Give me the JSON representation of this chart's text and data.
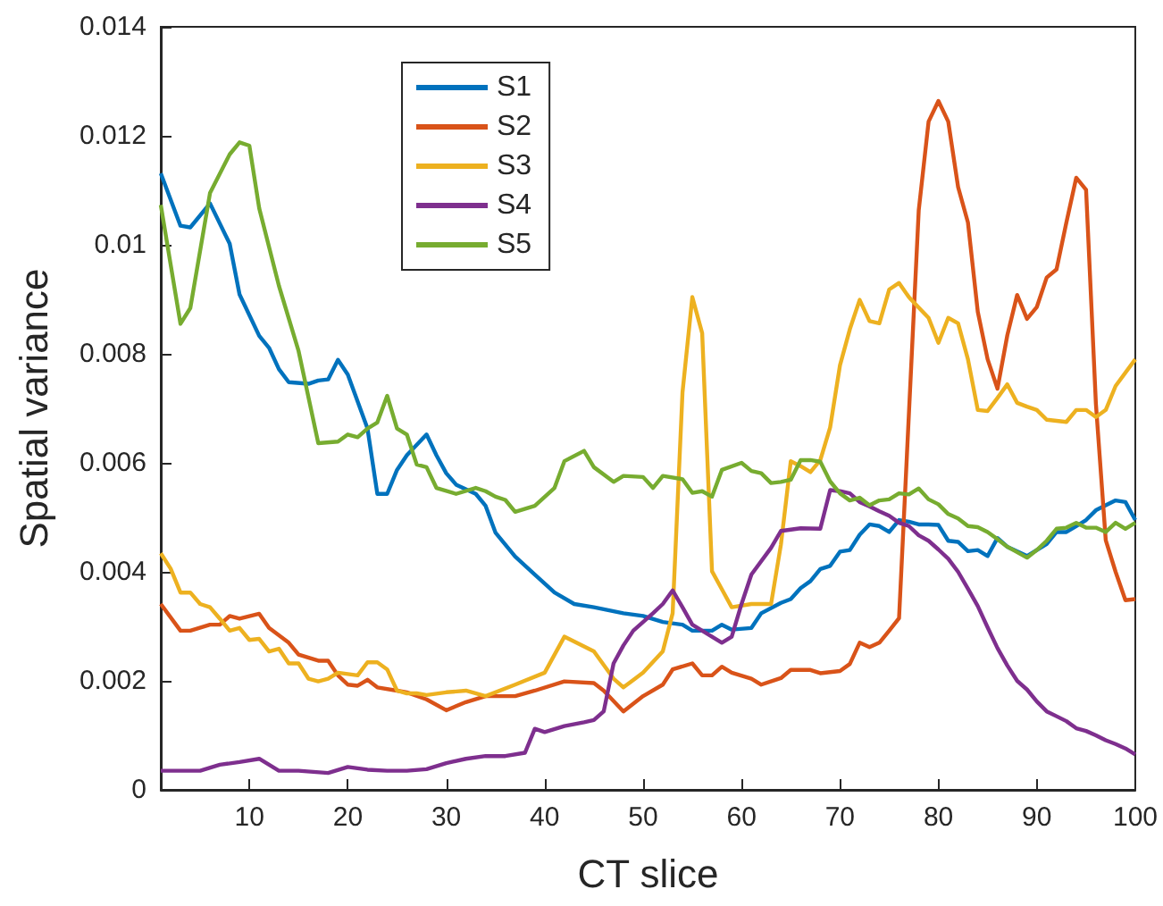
{
  "chart_data": {
    "type": "line",
    "xlabel": "CT slice",
    "ylabel": "Spatial variance",
    "xlim": [
      1,
      100
    ],
    "xticks": [
      10,
      20,
      30,
      40,
      50,
      60,
      70,
      80,
      90,
      100
    ],
    "ylim": [
      0,
      0.014
    ],
    "yticks": [
      0,
      0.002,
      0.004,
      0.006,
      0.008,
      0.01,
      0.012,
      0.014
    ],
    "grid": false,
    "legend": "top left",
    "series": [
      {
        "name": "S1",
        "color": "#0072bd",
        "x": [
          1,
          3,
          4,
          6,
          8,
          9,
          11,
          12,
          13,
          14,
          16,
          17,
          18,
          19,
          20,
          22,
          23,
          24,
          25,
          26,
          28,
          29,
          30,
          31,
          33,
          34,
          35,
          37,
          39,
          41,
          43,
          45,
          48,
          50,
          52,
          54,
          55,
          57,
          58,
          59,
          61,
          62,
          64,
          65,
          66,
          67,
          68,
          69,
          70,
          71,
          72,
          73,
          74,
          75,
          76,
          77,
          78,
          79,
          80,
          81,
          82,
          83,
          84,
          85,
          86,
          87,
          89,
          90,
          91,
          92,
          93,
          94,
          95,
          96,
          97,
          98,
          99,
          100
        ],
        "values": [
          0.01131,
          0.01035,
          0.01032,
          0.01076,
          0.01002,
          0.00909,
          0.00833,
          0.00811,
          0.00772,
          0.00748,
          0.00745,
          0.00751,
          0.00753,
          0.00789,
          0.00762,
          0.00663,
          0.00543,
          0.00543,
          0.00587,
          0.00614,
          0.00652,
          0.00614,
          0.00581,
          0.0056,
          0.00543,
          0.00521,
          0.00472,
          0.00428,
          0.00395,
          0.00362,
          0.00341,
          0.00335,
          0.00324,
          0.00319,
          0.00308,
          0.00303,
          0.00292,
          0.00292,
          0.00303,
          0.00294,
          0.00297,
          0.00324,
          0.00343,
          0.0035,
          0.0037,
          0.00383,
          0.00405,
          0.00411,
          0.00437,
          0.0044,
          0.00468,
          0.00487,
          0.00484,
          0.00473,
          0.00495,
          0.00492,
          0.00487,
          0.00487,
          0.00486,
          0.00457,
          0.00455,
          0.00438,
          0.0044,
          0.00429,
          0.00462,
          0.00446,
          0.00429,
          0.0044,
          0.00451,
          0.00473,
          0.00473,
          0.00484,
          0.00495,
          0.00513,
          0.00522,
          0.00531,
          0.00528,
          0.00495
        ]
      },
      {
        "name": "S2",
        "color": "#d95319",
        "x": [
          1,
          3,
          4,
          6,
          7,
          8,
          9,
          11,
          12,
          14,
          15,
          17,
          18,
          19,
          20,
          21,
          22,
          23,
          25,
          26,
          28,
          30,
          32,
          34,
          37,
          39,
          42,
          45,
          46,
          48,
          50,
          52,
          53,
          55,
          56,
          57,
          58,
          59,
          61,
          62,
          64,
          65,
          67,
          68,
          70,
          71,
          72,
          73,
          74,
          75,
          76,
          78,
          79,
          80,
          81,
          82,
          83,
          84,
          85,
          86,
          87,
          88,
          89,
          90,
          91,
          92,
          93,
          94,
          95,
          96,
          97,
          98,
          99,
          100
        ],
        "values": [
          0.00341,
          0.00292,
          0.00292,
          0.00303,
          0.00303,
          0.00319,
          0.00314,
          0.00323,
          0.00297,
          0.0027,
          0.00248,
          0.00237,
          0.00237,
          0.0021,
          0.00193,
          0.00191,
          0.00202,
          0.00188,
          0.00182,
          0.00179,
          0.00166,
          0.00146,
          0.00161,
          0.00172,
          0.00172,
          0.00182,
          0.00199,
          0.00196,
          0.00182,
          0.00144,
          0.00172,
          0.00193,
          0.00221,
          0.00232,
          0.0021,
          0.0021,
          0.00226,
          0.00215,
          0.00204,
          0.00193,
          0.00205,
          0.0022,
          0.0022,
          0.00214,
          0.00218,
          0.00231,
          0.0027,
          0.00262,
          0.0027,
          0.00292,
          0.00315,
          0.01063,
          0.01226,
          0.01264,
          0.01226,
          0.01106,
          0.01041,
          0.00877,
          0.0079,
          0.00736,
          0.00834,
          0.00908,
          0.00864,
          0.00886,
          0.0094,
          0.00955,
          0.01041,
          0.01123,
          0.01101,
          0.00708,
          0.00458,
          0.004,
          0.00348,
          0.0035
        ]
      },
      {
        "name": "S3",
        "color": "#edb120",
        "x": [
          1,
          2,
          3,
          4,
          5,
          6,
          7,
          8,
          9,
          10,
          11,
          12,
          13,
          14,
          15,
          16,
          17,
          18,
          19,
          21,
          22,
          23,
          24,
          25,
          26,
          27,
          28,
          30,
          32,
          34,
          37,
          40,
          42,
          45,
          47,
          48,
          50,
          52,
          53,
          54,
          55,
          56,
          57,
          58,
          59,
          61,
          63,
          64,
          65,
          66,
          67,
          68,
          69,
          70,
          71,
          72,
          73,
          74,
          75,
          76,
          77,
          78,
          79,
          80,
          81,
          82,
          83,
          84,
          85,
          86,
          87,
          88,
          89,
          90,
          91,
          93,
          94,
          95,
          96,
          97,
          98,
          100
        ],
        "values": [
          0.00434,
          0.00406,
          0.00362,
          0.00362,
          0.00341,
          0.00335,
          0.00314,
          0.00292,
          0.00297,
          0.00275,
          0.00277,
          0.00254,
          0.00259,
          0.00232,
          0.00232,
          0.00204,
          0.00199,
          0.00204,
          0.00215,
          0.0021,
          0.00234,
          0.00234,
          0.00221,
          0.00182,
          0.00177,
          0.00177,
          0.00174,
          0.00179,
          0.00182,
          0.00172,
          0.00193,
          0.00215,
          0.00281,
          0.00254,
          0.00204,
          0.00188,
          0.00215,
          0.00254,
          0.00324,
          0.00729,
          0.00904,
          0.00838,
          0.00401,
          0.00368,
          0.00335,
          0.00341,
          0.00341,
          0.0045,
          0.00603,
          0.00594,
          0.00583,
          0.00605,
          0.00665,
          0.00779,
          0.00845,
          0.00899,
          0.0086,
          0.00856,
          0.00918,
          0.0093,
          0.00904,
          0.00885,
          0.00866,
          0.0082,
          0.00866,
          0.00856,
          0.0079,
          0.00697,
          0.00695,
          0.00719,
          0.00744,
          0.0071,
          0.00703,
          0.00697,
          0.00679,
          0.00675,
          0.00697,
          0.00697,
          0.00684,
          0.00697,
          0.00741,
          0.0079
        ]
      },
      {
        "name": "S4",
        "color": "#7e2f8e",
        "x": [
          1,
          3,
          5,
          7,
          9,
          11,
          13,
          15,
          18,
          20,
          22,
          24,
          26,
          28,
          30,
          32,
          34,
          36,
          38,
          39,
          40,
          42,
          44,
          45,
          46,
          47,
          48,
          49,
          51,
          52,
          53,
          54,
          55,
          57,
          58,
          59,
          60,
          61,
          63,
          64,
          66,
          68,
          69,
          70,
          71,
          72,
          73,
          74,
          75,
          76,
          77,
          78,
          79,
          80,
          81,
          82,
          83,
          84,
          85,
          86,
          87,
          88,
          89,
          90,
          91,
          92,
          93,
          94,
          95,
          96,
          97,
          98,
          99,
          100
        ],
        "values": [
          0.00035,
          0.00035,
          0.00035,
          0.00046,
          0.00051,
          0.00057,
          0.00035,
          0.00035,
          0.00031,
          0.00042,
          0.00037,
          0.00035,
          0.00035,
          0.00038,
          0.00049,
          0.00057,
          0.00062,
          0.00062,
          0.00068,
          0.00112,
          0.00106,
          0.00117,
          0.00124,
          0.00128,
          0.00144,
          0.00232,
          0.00265,
          0.00292,
          0.00324,
          0.00341,
          0.00366,
          0.00335,
          0.00303,
          0.00281,
          0.0027,
          0.00281,
          0.00341,
          0.00395,
          0.00444,
          0.00475,
          0.0048,
          0.00479,
          0.0055,
          0.00548,
          0.00544,
          0.00528,
          0.0052,
          0.00511,
          0.00503,
          0.0049,
          0.00484,
          0.00467,
          0.00457,
          0.00441,
          0.00424,
          0.004,
          0.00369,
          0.00337,
          0.00298,
          0.0026,
          0.00228,
          0.002,
          0.00184,
          0.00162,
          0.00144,
          0.00135,
          0.00126,
          0.00113,
          0.00108,
          0.001,
          0.00091,
          0.00084,
          0.00076,
          0.00065
        ]
      },
      {
        "name": "S5",
        "color": "#77ac30",
        "x": [
          1,
          3,
          4,
          6,
          8,
          9,
          10,
          11,
          13,
          15,
          17,
          19,
          20,
          21,
          22,
          23,
          24,
          25,
          26,
          27,
          28,
          29,
          31,
          33,
          34,
          35,
          36,
          37,
          39,
          41,
          42,
          44,
          45,
          47,
          48,
          50,
          51,
          52,
          54,
          55,
          56,
          57,
          58,
          60,
          61,
          62,
          63,
          64,
          65,
          66,
          67,
          68,
          69,
          70,
          71,
          72,
          73,
          74,
          75,
          76,
          77,
          78,
          79,
          80,
          81,
          82,
          83,
          84,
          85,
          86,
          87,
          89,
          90,
          91,
          92,
          93,
          94,
          95,
          96,
          97,
          98,
          99,
          100
        ],
        "values": [
          0.01073,
          0.00855,
          0.00884,
          0.01095,
          0.01166,
          0.01188,
          0.01182,
          0.01067,
          0.00925,
          0.00805,
          0.00636,
          0.00639,
          0.00652,
          0.00647,
          0.00663,
          0.00674,
          0.00723,
          0.00663,
          0.00652,
          0.00597,
          0.00592,
          0.00554,
          0.00543,
          0.00554,
          0.00548,
          0.00538,
          0.00532,
          0.0051,
          0.00521,
          0.00554,
          0.00603,
          0.00622,
          0.00592,
          0.00565,
          0.00576,
          0.00574,
          0.00554,
          0.00576,
          0.0057,
          0.00545,
          0.00548,
          0.00538,
          0.00587,
          0.006,
          0.00585,
          0.00581,
          0.00563,
          0.00565,
          0.00569,
          0.00605,
          0.00605,
          0.00602,
          0.00566,
          0.00544,
          0.00531,
          0.00536,
          0.00522,
          0.00531,
          0.00533,
          0.00544,
          0.00542,
          0.00553,
          0.00533,
          0.00524,
          0.00506,
          0.00498,
          0.00484,
          0.00482,
          0.00473,
          0.0046,
          0.00446,
          0.00426,
          0.0044,
          0.00457,
          0.00479,
          0.00481,
          0.0049,
          0.00481,
          0.00481,
          0.00473,
          0.0049,
          0.00479,
          0.0049
        ]
      }
    ]
  }
}
